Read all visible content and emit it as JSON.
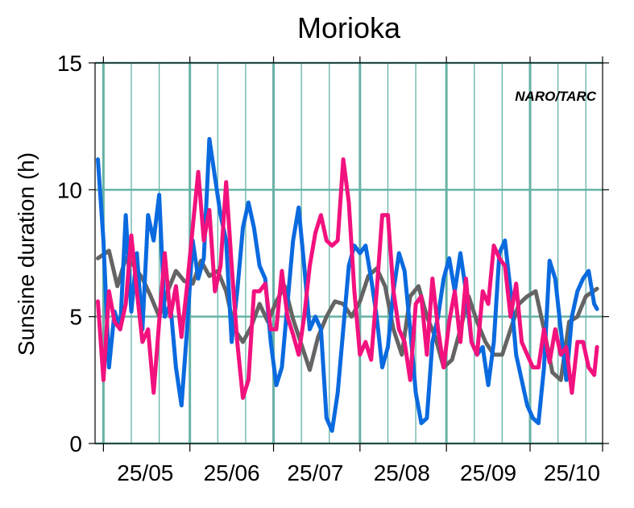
{
  "chart_data": {
    "type": "line",
    "title": "Morioka",
    "xlabel": "",
    "ylabel": "Sunsine duration (h)",
    "watermark": "NARO/TARC",
    "ylim": [
      0,
      15
    ],
    "yticks": [
      0,
      5,
      10,
      15
    ],
    "xlim": [
      "2025-04-28",
      "2025-10-27"
    ],
    "xtick_labels": [
      "25/05",
      "25/06",
      "25/07",
      "25/08",
      "25/09",
      "25/10"
    ],
    "grid": true,
    "colors": {
      "grid": "#66b2a6",
      "gray": "#646464",
      "blue": "#0a6adf",
      "pink": "#f2127e"
    },
    "series": [
      {
        "color": "#646464",
        "x": [
          "2025-04-29",
          "2025-05-03",
          "2025-05-06",
          "2025-05-09",
          "2025-05-12",
          "2025-05-15",
          "2025-05-18",
          "2025-05-21",
          "2025-05-24",
          "2025-05-27",
          "2025-05-30",
          "2025-06-02",
          "2025-06-05",
          "2025-06-08",
          "2025-06-11",
          "2025-06-14",
          "2025-06-17",
          "2025-06-20",
          "2025-06-23",
          "2025-06-26",
          "2025-06-29",
          "2025-07-02",
          "2025-07-05",
          "2025-07-08",
          "2025-07-11",
          "2025-07-14",
          "2025-07-17",
          "2025-07-20",
          "2025-07-23",
          "2025-07-26",
          "2025-07-29",
          "2025-08-01",
          "2025-08-04",
          "2025-08-07",
          "2025-08-10",
          "2025-08-13",
          "2025-08-16",
          "2025-08-19",
          "2025-08-22",
          "2025-08-25",
          "2025-08-28",
          "2025-08-31",
          "2025-09-03",
          "2025-09-06",
          "2025-09-09",
          "2025-09-12",
          "2025-09-15",
          "2025-09-18",
          "2025-09-21",
          "2025-09-24",
          "2025-09-27",
          "2025-09-30",
          "2025-10-03",
          "2025-10-06",
          "2025-10-09",
          "2025-10-12",
          "2025-10-15",
          "2025-10-18",
          "2025-10-21",
          "2025-10-25"
        ],
        "values": [
          7.3,
          7.6,
          6.2,
          7.3,
          7.0,
          6.5,
          5.8,
          5.0,
          6.0,
          6.8,
          6.4,
          6.3,
          7.2,
          6.6,
          6.8,
          6.0,
          4.5,
          4.0,
          4.6,
          5.5,
          4.8,
          5.6,
          6.2,
          4.9,
          3.9,
          2.9,
          4.2,
          5.0,
          5.6,
          5.5,
          5.0,
          5.6,
          6.6,
          6.9,
          6.2,
          4.5,
          3.5,
          5.8,
          6.2,
          5.0,
          4.2,
          3.0,
          3.3,
          4.5,
          5.8,
          4.8,
          4.0,
          3.5,
          3.5,
          4.5,
          5.5,
          5.8,
          6.0,
          4.5,
          2.8,
          2.5,
          4.8,
          5.0,
          5.8,
          6.1
        ]
      },
      {
        "color": "#0a6adf",
        "x": [
          "2025-04-29",
          "2025-05-01",
          "2025-05-03",
          "2025-05-05",
          "2025-05-07",
          "2025-05-09",
          "2025-05-11",
          "2025-05-13",
          "2025-05-15",
          "2025-05-17",
          "2025-05-19",
          "2025-05-21",
          "2025-05-23",
          "2025-05-25",
          "2025-05-27",
          "2025-05-29",
          "2025-05-31",
          "2025-06-02",
          "2025-06-04",
          "2025-06-06",
          "2025-06-08",
          "2025-06-10",
          "2025-06-12",
          "2025-06-14",
          "2025-06-16",
          "2025-06-18",
          "2025-06-20",
          "2025-06-22",
          "2025-06-24",
          "2025-06-26",
          "2025-06-28",
          "2025-06-30",
          "2025-07-02",
          "2025-07-04",
          "2025-07-06",
          "2025-07-08",
          "2025-07-10",
          "2025-07-12",
          "2025-07-14",
          "2025-07-16",
          "2025-07-18",
          "2025-07-20",
          "2025-07-22",
          "2025-07-24",
          "2025-07-26",
          "2025-07-28",
          "2025-07-30",
          "2025-08-01",
          "2025-08-03",
          "2025-08-05",
          "2025-08-07",
          "2025-08-09",
          "2025-08-11",
          "2025-08-13",
          "2025-08-15",
          "2025-08-17",
          "2025-08-19",
          "2025-08-21",
          "2025-08-23",
          "2025-08-25",
          "2025-08-27",
          "2025-08-29",
          "2025-08-31",
          "2025-09-02",
          "2025-09-04",
          "2025-09-06",
          "2025-09-08",
          "2025-09-10",
          "2025-09-12",
          "2025-09-14",
          "2025-09-16",
          "2025-09-18",
          "2025-09-20",
          "2025-09-22",
          "2025-09-24",
          "2025-09-26",
          "2025-09-28",
          "2025-09-30",
          "2025-10-02",
          "2025-10-04",
          "2025-10-06",
          "2025-10-08",
          "2025-10-10",
          "2025-10-12",
          "2025-10-14",
          "2025-10-16",
          "2025-10-18",
          "2025-10-20",
          "2025-10-22",
          "2025-10-24",
          "2025-10-25"
        ],
        "values": [
          11.2,
          8.0,
          3.0,
          5.2,
          4.5,
          9.0,
          5.2,
          7.5,
          4.5,
          9.0,
          8.0,
          9.8,
          5.0,
          5.5,
          3.0,
          1.5,
          4.5,
          8.0,
          6.5,
          7.3,
          12.0,
          10.5,
          9.0,
          8.0,
          4.0,
          6.0,
          8.5,
          9.5,
          8.5,
          7.0,
          6.5,
          4.0,
          2.3,
          3.0,
          5.5,
          8.0,
          9.3,
          7.0,
          4.5,
          5.0,
          4.5,
          1.0,
          0.5,
          2.0,
          4.5,
          7.0,
          7.8,
          7.5,
          7.8,
          6.5,
          5.0,
          3.0,
          3.8,
          6.0,
          7.5,
          6.8,
          4.5,
          2.0,
          0.8,
          1.0,
          4.0,
          5.0,
          6.5,
          7.3,
          6.0,
          7.5,
          6.0,
          4.0,
          3.5,
          3.8,
          2.3,
          4.0,
          7.5,
          8.0,
          6.0,
          3.5,
          2.5,
          1.5,
          1.0,
          0.8,
          3.0,
          7.2,
          6.5,
          4.5,
          2.5,
          5.0,
          6.0,
          6.5,
          6.8,
          5.5,
          5.3
        ]
      },
      {
        "color": "#f2127e",
        "x": [
          "2025-04-29",
          "2025-05-01",
          "2025-05-03",
          "2025-05-05",
          "2025-05-07",
          "2025-05-09",
          "2025-05-11",
          "2025-05-13",
          "2025-05-15",
          "2025-05-17",
          "2025-05-19",
          "2025-05-21",
          "2025-05-23",
          "2025-05-25",
          "2025-05-27",
          "2025-05-29",
          "2025-05-31",
          "2025-06-02",
          "2025-06-04",
          "2025-06-06",
          "2025-06-08",
          "2025-06-10",
          "2025-06-12",
          "2025-06-14",
          "2025-06-16",
          "2025-06-18",
          "2025-06-20",
          "2025-06-22",
          "2025-06-24",
          "2025-06-26",
          "2025-06-28",
          "2025-06-30",
          "2025-07-02",
          "2025-07-04",
          "2025-07-06",
          "2025-07-08",
          "2025-07-10",
          "2025-07-12",
          "2025-07-14",
          "2025-07-16",
          "2025-07-18",
          "2025-07-20",
          "2025-07-22",
          "2025-07-24",
          "2025-07-26",
          "2025-07-28",
          "2025-07-30",
          "2025-08-01",
          "2025-08-03",
          "2025-08-05",
          "2025-08-07",
          "2025-08-09",
          "2025-08-11",
          "2025-08-13",
          "2025-08-15",
          "2025-08-17",
          "2025-08-19",
          "2025-08-21",
          "2025-08-23",
          "2025-08-25",
          "2025-08-27",
          "2025-08-29",
          "2025-08-31",
          "2025-09-02",
          "2025-09-04",
          "2025-09-06",
          "2025-09-08",
          "2025-09-10",
          "2025-09-12",
          "2025-09-14",
          "2025-09-16",
          "2025-09-18",
          "2025-09-20",
          "2025-09-22",
          "2025-09-24",
          "2025-09-26",
          "2025-09-28",
          "2025-09-30",
          "2025-10-02",
          "2025-10-04",
          "2025-10-06",
          "2025-10-08",
          "2025-10-10",
          "2025-10-12",
          "2025-10-14",
          "2025-10-16",
          "2025-10-18",
          "2025-10-20",
          "2025-10-22",
          "2025-10-24",
          "2025-10-25"
        ],
        "values": [
          5.6,
          2.5,
          6.0,
          4.8,
          4.5,
          5.5,
          8.2,
          6.0,
          4.0,
          4.5,
          2.0,
          4.8,
          7.5,
          5.0,
          6.2,
          4.2,
          6.2,
          8.5,
          10.7,
          8.0,
          9.2,
          6.0,
          7.0,
          10.3,
          7.0,
          4.0,
          1.8,
          2.5,
          6.0,
          6.0,
          6.3,
          4.5,
          4.5,
          6.8,
          5.0,
          4.3,
          3.5,
          5.0,
          7.0,
          8.3,
          9.0,
          8.0,
          7.8,
          8.0,
          11.2,
          9.5,
          6.0,
          3.5,
          4.0,
          3.3,
          6.0,
          9.0,
          9.0,
          6.0,
          4.5,
          4.0,
          2.5,
          5.5,
          5.8,
          3.5,
          6.5,
          4.5,
          3.0,
          4.8,
          6.0,
          4.0,
          6.5,
          4.0,
          3.5,
          6.0,
          5.5,
          7.8,
          7.3,
          7.0,
          5.0,
          6.3,
          4.0,
          3.5,
          3.0,
          3.0,
          4.5,
          3.2,
          4.5,
          3.5,
          3.8,
          2.0,
          4.0,
          4.0,
          3.0,
          2.7,
          3.8
        ]
      }
    ]
  }
}
